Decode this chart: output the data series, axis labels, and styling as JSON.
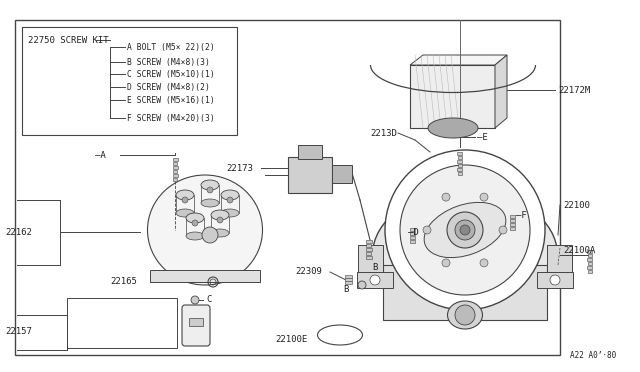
{
  "bg_color": "#ffffff",
  "line_color": "#444444",
  "text_color": "#222222",
  "screw_kit_label": "22750 SCREW KIT",
  "screw_items": [
    "A BOLT (M5× 22)(2)",
    "B SCREW (M4×8)(3)",
    "C SCREW (M5×10)(1)",
    "D SCREW (M4×8)(2)",
    "E SCREW (M5×16)(1)",
    "F SCREW (M4×20)(3)"
  ],
  "font_size_small": 6.0,
  "font_size_label": 6.5,
  "font_size_letter": 6.0
}
